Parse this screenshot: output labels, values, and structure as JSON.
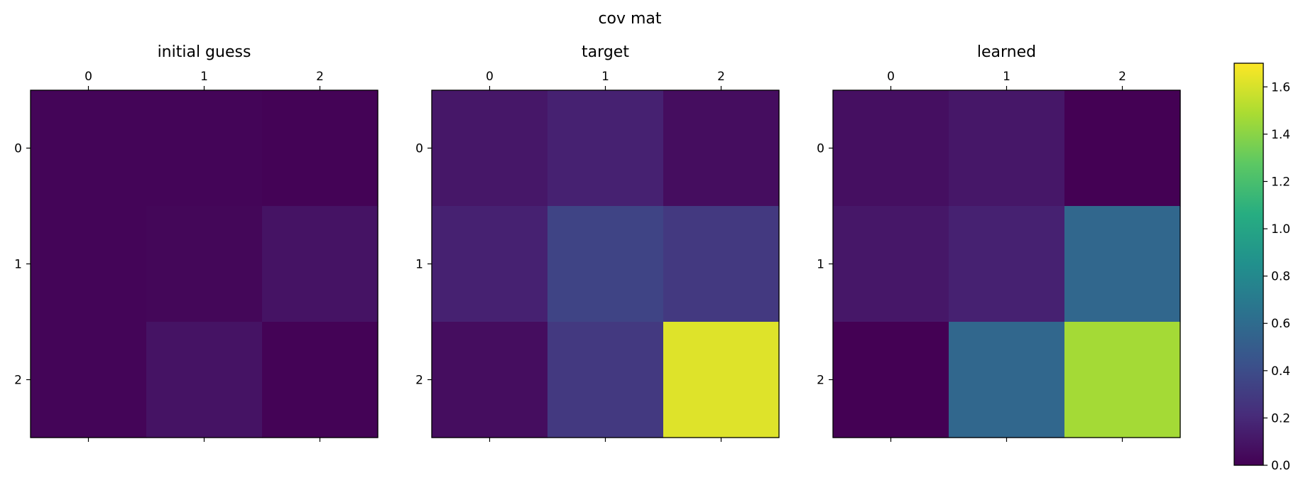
{
  "suptitle": "cov mat",
  "chart_data": [
    {
      "type": "heatmap",
      "title": "initial guess",
      "x_ticks": [
        "0",
        "1",
        "2"
      ],
      "y_ticks": [
        "0",
        "1",
        "2"
      ],
      "colormap": "viridis",
      "vmin": 0.0,
      "vmax": 1.7,
      "values": [
        [
          0.02,
          0.02,
          0.01
        ],
        [
          0.02,
          0.03,
          0.09
        ],
        [
          0.02,
          0.09,
          0.01
        ]
      ]
    },
    {
      "type": "heatmap",
      "title": "target",
      "x_ticks": [
        "0",
        "1",
        "2"
      ],
      "y_ticks": [
        "0",
        "1",
        "2"
      ],
      "colormap": "viridis",
      "vmin": 0.0,
      "vmax": 1.7,
      "values": [
        [
          0.11,
          0.16,
          0.06
        ],
        [
          0.16,
          0.35,
          0.29
        ],
        [
          0.06,
          0.29,
          1.62
        ]
      ]
    },
    {
      "type": "heatmap",
      "title": "learned",
      "x_ticks": [
        "0",
        "1",
        "2"
      ],
      "y_ticks": [
        "0",
        "1",
        "2"
      ],
      "colormap": "viridis",
      "vmin": 0.0,
      "vmax": 1.7,
      "values": [
        [
          0.07,
          0.11,
          0.0
        ],
        [
          0.11,
          0.16,
          0.57
        ],
        [
          0.0,
          0.57,
          1.47
        ]
      ]
    },
    {
      "type": "colorbar",
      "colormap": "viridis",
      "vmin": 0.0,
      "vmax": 1.7,
      "ticks": [
        0.0,
        0.2,
        0.4,
        0.6,
        0.8,
        1.0,
        1.2,
        1.4,
        1.6
      ],
      "tick_labels": [
        "0.0",
        "0.2",
        "0.4",
        "0.6",
        "0.8",
        "1.0",
        "1.2",
        "1.4",
        "1.6"
      ]
    }
  ]
}
